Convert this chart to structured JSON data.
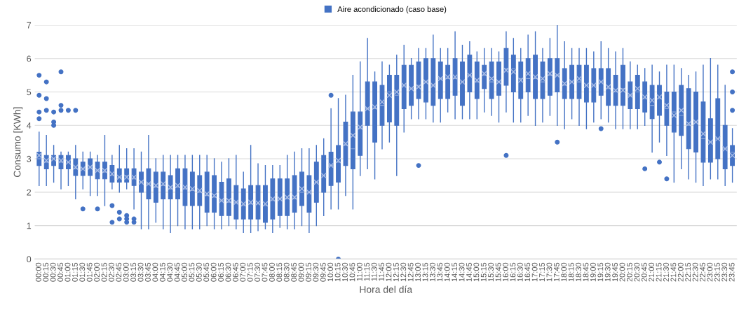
{
  "chart_data": {
    "type": "box",
    "xlabel": "Hora del día",
    "ylabel": "Consumo [KWh]",
    "categories": [
      "00:00",
      "00:15",
      "00:30",
      "00:45",
      "01:00",
      "01:15",
      "01:30",
      "01:45",
      "02:00",
      "02:15",
      "02:30",
      "02:45",
      "03:00",
      "03:15",
      "03:30",
      "03:45",
      "04:00",
      "04:15",
      "04:30",
      "04:45",
      "05:00",
      "05:15",
      "05:30",
      "05:45",
      "06:00",
      "06:15",
      "06:30",
      "06:45",
      "07:00",
      "07:15",
      "07:30",
      "07:45",
      "08:00",
      "08:15",
      "08:30",
      "08:45",
      "09:00",
      "09:15",
      "09:30",
      "09:45",
      "10:00",
      "10:15",
      "10:30",
      "10:45",
      "11:00",
      "11:15",
      "11:30",
      "11:45",
      "12:00",
      "12:15",
      "12:30",
      "12:45",
      "13:00",
      "13:15",
      "13:30",
      "13:45",
      "14:00",
      "14:15",
      "14:30",
      "14:45",
      "15:00",
      "15:15",
      "15:30",
      "15:45",
      "16:00",
      "16:15",
      "16:30",
      "16:45",
      "17:00",
      "17:15",
      "17:30",
      "17:45",
      "18:00",
      "18:15",
      "18:30",
      "18:45",
      "19:00",
      "19:15",
      "19:30",
      "19:45",
      "20:00",
      "20:15",
      "20:30",
      "20:45",
      "21:00",
      "21:15",
      "21:30",
      "21:45",
      "22:00",
      "22:15",
      "22:30",
      "22:45",
      "23:00",
      "23:15",
      "23:30",
      "23:45"
    ],
    "series": [
      {
        "name": "Aire acondicionado (caso base)",
        "color": "#4472c4",
        "boxes": [
          {
            "low": 2.2,
            "q1": 2.8,
            "median": 3.0,
            "q3": 3.2,
            "high": 3.8,
            "mean": 3.1,
            "outliers": [
              4.2,
              4.4,
              4.9,
              5.5
            ]
          },
          {
            "low": 2.2,
            "q1": 2.7,
            "median": 2.9,
            "q3": 3.1,
            "high": 3.7,
            "mean": 2.95,
            "outliers": [
              4.45,
              4.8,
              5.3
            ]
          },
          {
            "low": 2.3,
            "q1": 2.8,
            "median": 3.0,
            "q3": 3.1,
            "high": 3.4,
            "mean": 3.0,
            "outliers": [
              4.0,
              4.1,
              4.4
            ]
          },
          {
            "low": 2.1,
            "q1": 2.7,
            "median": 2.9,
            "q3": 3.1,
            "high": 3.2,
            "mean": 2.95,
            "outliers": [
              4.45,
              4.6,
              5.6
            ]
          },
          {
            "low": 2.2,
            "q1": 2.7,
            "median": 2.9,
            "q3": 3.1,
            "high": 3.2,
            "mean": 2.9,
            "outliers": [
              4.45
            ]
          },
          {
            "low": 1.8,
            "q1": 2.5,
            "median": 2.7,
            "q3": 3.0,
            "high": 3.4,
            "mean": 2.75,
            "outliers": [
              4.45
            ]
          },
          {
            "low": 2.1,
            "q1": 2.5,
            "median": 2.7,
            "q3": 2.9,
            "high": 3.2,
            "mean": 2.7,
            "outliers": [
              1.5
            ]
          },
          {
            "low": 1.9,
            "q1": 2.5,
            "median": 2.75,
            "q3": 3.0,
            "high": 3.2,
            "mean": 2.75
          },
          {
            "low": 1.9,
            "q1": 2.4,
            "median": 2.65,
            "q3": 2.9,
            "high": 3.1,
            "mean": 2.65,
            "outliers": [
              1.5
            ]
          },
          {
            "low": 1.6,
            "q1": 2.4,
            "median": 2.6,
            "q3": 2.9,
            "high": 3.7,
            "mean": 2.65
          },
          {
            "low": 2.1,
            "q1": 2.3,
            "median": 2.5,
            "q3": 2.8,
            "high": 3.1,
            "mean": 2.55,
            "outliers": [
              1.1,
              1.6
            ]
          },
          {
            "low": 2.0,
            "q1": 2.3,
            "median": 2.45,
            "q3": 2.7,
            "high": 3.4,
            "mean": 2.45,
            "outliers": [
              1.2,
              1.4
            ]
          },
          {
            "low": 2.1,
            "q1": 2.3,
            "median": 2.5,
            "q3": 2.7,
            "high": 3.3,
            "mean": 2.45,
            "outliers": [
              1.1,
              1.2,
              1.3
            ]
          },
          {
            "low": 1.5,
            "q1": 2.2,
            "median": 2.4,
            "q3": 2.7,
            "high": 3.3,
            "mean": 2.45,
            "outliers": [
              1.1,
              1.2
            ]
          },
          {
            "low": 0.9,
            "q1": 2.0,
            "median": 2.3,
            "q3": 2.6,
            "high": 3.2,
            "mean": 2.3
          },
          {
            "low": 0.9,
            "q1": 1.8,
            "median": 2.25,
            "q3": 2.7,
            "high": 3.7,
            "mean": 2.25
          },
          {
            "low": 1.1,
            "q1": 1.7,
            "median": 2.15,
            "q3": 2.6,
            "high": 3.0,
            "mean": 2.2
          },
          {
            "low": 0.9,
            "q1": 1.8,
            "median": 2.2,
            "q3": 2.6,
            "high": 3.1,
            "mean": 2.25
          },
          {
            "low": 0.8,
            "q1": 1.8,
            "median": 2.1,
            "q3": 2.5,
            "high": 3.1,
            "mean": 2.15
          },
          {
            "low": 1.0,
            "q1": 1.8,
            "median": 2.15,
            "q3": 2.7,
            "high": 3.1,
            "mean": 2.2
          },
          {
            "low": 0.9,
            "q1": 1.6,
            "median": 2.1,
            "q3": 2.7,
            "high": 3.1,
            "mean": 2.15
          },
          {
            "low": 0.9,
            "q1": 1.6,
            "median": 2.05,
            "q3": 2.6,
            "high": 3.1,
            "mean": 2.1
          },
          {
            "low": 0.9,
            "q1": 1.6,
            "median": 2.0,
            "q3": 2.5,
            "high": 3.1,
            "mean": 2.05
          },
          {
            "low": 1.0,
            "q1": 1.4,
            "median": 1.9,
            "q3": 2.6,
            "high": 3.1,
            "mean": 1.95
          },
          {
            "low": 0.9,
            "q1": 1.4,
            "median": 1.85,
            "q3": 2.5,
            "high": 3.0,
            "mean": 1.9
          },
          {
            "low": 0.9,
            "q1": 1.3,
            "median": 1.75,
            "q3": 2.3,
            "high": 2.9,
            "mean": 1.75
          },
          {
            "low": 1.0,
            "q1": 1.3,
            "median": 1.7,
            "q3": 2.4,
            "high": 3.0,
            "mean": 1.75
          },
          {
            "low": 0.9,
            "q1": 1.2,
            "median": 1.7,
            "q3": 2.2,
            "high": 3.1,
            "mean": 1.7
          },
          {
            "low": 0.8,
            "q1": 1.2,
            "median": 1.6,
            "q3": 2.1,
            "high": 2.6,
            "mean": 1.65
          },
          {
            "low": 0.8,
            "q1": 1.2,
            "median": 1.65,
            "q3": 2.2,
            "high": 3.4,
            "mean": 1.7
          },
          {
            "low": 0.85,
            "q1": 1.2,
            "median": 1.65,
            "q3": 2.2,
            "high": 2.85,
            "mean": 1.68
          },
          {
            "low": 0.9,
            "q1": 1.1,
            "median": 1.6,
            "q3": 2.2,
            "high": 2.8,
            "mean": 1.65
          },
          {
            "low": 0.8,
            "q1": 1.2,
            "median": 1.75,
            "q3": 2.4,
            "high": 2.8,
            "mean": 1.8
          },
          {
            "low": 0.95,
            "q1": 1.3,
            "median": 1.8,
            "q3": 2.4,
            "high": 2.8,
            "mean": 1.8
          },
          {
            "low": 0.9,
            "q1": 1.3,
            "median": 1.8,
            "q3": 2.4,
            "high": 3.1,
            "mean": 1.85
          },
          {
            "low": 0.9,
            "q1": 1.4,
            "median": 1.8,
            "q3": 2.5,
            "high": 3.2,
            "mean": 1.85
          },
          {
            "low": 1.0,
            "q1": 1.6,
            "median": 2.0,
            "q3": 2.6,
            "high": 3.3,
            "mean": 2.1
          },
          {
            "low": 0.8,
            "q1": 1.4,
            "median": 2.0,
            "q3": 2.5,
            "high": 3.3,
            "mean": 2.0
          },
          {
            "low": 1.0,
            "q1": 1.7,
            "median": 2.3,
            "q3": 2.9,
            "high": 3.4,
            "mean": 2.3
          },
          {
            "low": 1.3,
            "q1": 2.0,
            "median": 2.5,
            "q3": 3.1,
            "high": 3.6,
            "mean": 2.5
          },
          {
            "low": 1.5,
            "q1": 2.2,
            "median": 2.8,
            "q3": 3.2,
            "high": 4.5,
            "mean": 2.8,
            "outliers": [
              4.9
            ]
          },
          {
            "low": 1.5,
            "q1": 2.3,
            "median": 2.9,
            "q3": 3.4,
            "high": 4.8,
            "mean": 2.95,
            "outliers": [
              0.0
            ]
          },
          {
            "low": 1.9,
            "q1": 2.8,
            "median": 3.4,
            "q3": 4.1,
            "high": 4.9,
            "mean": 3.45
          },
          {
            "low": 1.5,
            "q1": 2.7,
            "median": 3.3,
            "q3": 4.4,
            "high": 5.5,
            "mean": 3.7
          },
          {
            "low": 2.5,
            "q1": 3.1,
            "median": 3.9,
            "q3": 4.4,
            "high": 5.9,
            "mean": 3.95
          },
          {
            "low": 2.7,
            "q1": 4.0,
            "median": 4.5,
            "q3": 5.3,
            "high": 6.6,
            "mean": 4.5
          },
          {
            "low": 2.4,
            "q1": 3.5,
            "median": 4.5,
            "q3": 5.3,
            "high": 5.6,
            "mean": 4.55
          },
          {
            "low": 3.3,
            "q1": 4.0,
            "median": 4.6,
            "q3": 5.2,
            "high": 5.9,
            "mean": 4.7
          },
          {
            "low": 3.5,
            "q1": 4.1,
            "median": 5.0,
            "q3": 5.5,
            "high": 5.8,
            "mean": 4.9
          },
          {
            "low": 2.5,
            "q1": 4.0,
            "median": 4.9,
            "q3": 5.5,
            "high": 6.1,
            "mean": 5.0
          },
          {
            "low": 3.8,
            "q1": 4.5,
            "median": 5.2,
            "q3": 5.8,
            "high": 6.4,
            "mean": 5.2
          },
          {
            "low": 4.2,
            "q1": 4.6,
            "median": 5.1,
            "q3": 5.8,
            "high": 6.0,
            "mean": 5.1
          },
          {
            "low": 4.2,
            "q1": 4.8,
            "median": 5.2,
            "q3": 5.9,
            "high": 6.3,
            "mean": 5.15,
            "outliers": [
              2.8
            ]
          },
          {
            "low": 4.2,
            "q1": 4.7,
            "median": 5.3,
            "q3": 6.0,
            "high": 6.3,
            "mean": 5.3
          },
          {
            "low": 4.1,
            "q1": 4.6,
            "median": 5.2,
            "q3": 6.0,
            "high": 6.7,
            "mean": 5.2
          },
          {
            "low": 4.1,
            "q1": 4.8,
            "median": 5.4,
            "q3": 5.9,
            "high": 6.3,
            "mean": 5.4
          },
          {
            "low": 4.4,
            "q1": 4.8,
            "median": 5.4,
            "q3": 5.8,
            "high": 6.3,
            "mean": 5.45
          },
          {
            "low": 4.2,
            "q1": 4.9,
            "median": 5.4,
            "q3": 6.0,
            "high": 6.8,
            "mean": 5.45
          },
          {
            "low": 4.2,
            "q1": 4.6,
            "median": 5.3,
            "q3": 5.9,
            "high": 6.4,
            "mean": 5.3
          },
          {
            "low": 4.2,
            "q1": 5.0,
            "median": 5.5,
            "q3": 6.1,
            "high": 6.5,
            "mean": 5.5
          },
          {
            "low": 4.2,
            "q1": 4.8,
            "median": 5.3,
            "q3": 5.9,
            "high": 6.2,
            "mean": 5.35
          },
          {
            "low": 4.4,
            "q1": 5.1,
            "median": 5.5,
            "q3": 5.8,
            "high": 6.3,
            "mean": 5.55
          },
          {
            "low": 4.3,
            "q1": 4.8,
            "median": 5.3,
            "q3": 5.9,
            "high": 6.3,
            "mean": 5.4
          },
          {
            "low": 4.1,
            "q1": 4.9,
            "median": 5.3,
            "q3": 5.9,
            "high": 6.2,
            "mean": 5.3
          },
          {
            "low": 4.4,
            "q1": 5.2,
            "median": 5.7,
            "q3": 6.3,
            "high": 6.8,
            "mean": 5.65,
            "outliers": [
              3.1
            ]
          },
          {
            "low": 4.1,
            "q1": 5.0,
            "median": 5.7,
            "q3": 6.1,
            "high": 6.6,
            "mean": 5.6
          },
          {
            "low": 4.1,
            "q1": 4.8,
            "median": 5.4,
            "q3": 5.9,
            "high": 6.3,
            "mean": 5.35
          },
          {
            "low": 4.3,
            "q1": 5.0,
            "median": 5.4,
            "q3": 6.0,
            "high": 6.7,
            "mean": 5.55
          },
          {
            "low": 4.0,
            "q1": 4.8,
            "median": 5.4,
            "q3": 6.1,
            "high": 6.8,
            "mean": 5.45
          },
          {
            "low": 4.1,
            "q1": 4.8,
            "median": 5.3,
            "q3": 5.9,
            "high": 6.3,
            "mean": 5.4
          },
          {
            "low": 4.3,
            "q1": 4.9,
            "median": 5.5,
            "q3": 6.0,
            "high": 6.6,
            "mean": 5.55
          },
          {
            "low": 4.0,
            "q1": 5.0,
            "median": 5.5,
            "q3": 6.0,
            "high": 7.0,
            "mean": 5.5,
            "outliers": [
              3.5
            ]
          },
          {
            "low": 3.9,
            "q1": 4.8,
            "median": 5.2,
            "q3": 5.7,
            "high": 6.5,
            "mean": 5.25
          },
          {
            "low": 4.2,
            "q1": 4.8,
            "median": 5.3,
            "q3": 5.8,
            "high": 6.3,
            "mean": 5.3
          },
          {
            "low": 4.0,
            "q1": 4.8,
            "median": 5.3,
            "q3": 5.8,
            "high": 6.3,
            "mean": 5.4
          },
          {
            "low": 3.9,
            "q1": 4.7,
            "median": 5.2,
            "q3": 5.8,
            "high": 6.3,
            "mean": 5.2
          },
          {
            "low": 4.1,
            "q1": 4.7,
            "median": 5.2,
            "q3": 5.7,
            "high": 6.2,
            "mean": 5.2
          },
          {
            "low": 4.2,
            "q1": 4.9,
            "median": 5.3,
            "q3": 5.7,
            "high": 6.5,
            "mean": 5.3,
            "outliers": [
              3.9
            ]
          },
          {
            "low": 4.1,
            "q1": 4.6,
            "median": 5.1,
            "q3": 5.7,
            "high": 6.3,
            "mean": 5.15
          },
          {
            "low": 3.9,
            "q1": 4.6,
            "median": 5.0,
            "q3": 5.5,
            "high": 6.2,
            "mean": 5.05
          },
          {
            "low": 3.9,
            "q1": 4.6,
            "median": 5.1,
            "q3": 5.8,
            "high": 6.3,
            "mean": 5.05
          },
          {
            "low": 3.9,
            "q1": 4.5,
            "median": 4.9,
            "q3": 5.3,
            "high": 5.9,
            "mean": 4.9
          },
          {
            "low": 3.9,
            "q1": 4.5,
            "median": 5.0,
            "q3": 5.5,
            "high": 5.8,
            "mean": 5.1
          },
          {
            "low": 4.0,
            "q1": 4.4,
            "median": 4.8,
            "q3": 5.3,
            "high": 5.7,
            "mean": 4.85,
            "outliers": [
              2.7
            ]
          },
          {
            "low": 3.2,
            "q1": 4.2,
            "median": 4.6,
            "q3": 5.2,
            "high": 5.8,
            "mean": 4.75
          },
          {
            "low": 3.5,
            "q1": 4.3,
            "median": 4.8,
            "q3": 5.2,
            "high": 5.6,
            "mean": 4.85,
            "outliers": [
              2.9
            ]
          },
          {
            "low": 3.1,
            "q1": 4.0,
            "median": 4.5,
            "q3": 5.0,
            "high": 5.8,
            "mean": 4.6,
            "outliers": [
              2.4
            ]
          },
          {
            "low": 2.3,
            "q1": 3.8,
            "median": 4.4,
            "q3": 5.0,
            "high": 5.8,
            "mean": 4.3
          },
          {
            "low": 2.7,
            "q1": 3.7,
            "median": 4.3,
            "q3": 5.2,
            "high": 5.7,
            "mean": 4.45
          },
          {
            "low": 2.4,
            "q1": 3.3,
            "median": 4.0,
            "q3": 5.1,
            "high": 5.5,
            "mean": 4.05
          },
          {
            "low": 2.3,
            "q1": 3.2,
            "median": 4.1,
            "q3": 5.0,
            "high": 5.6,
            "mean": 4.1
          },
          {
            "low": 2.2,
            "q1": 2.9,
            "median": 3.6,
            "q3": 4.7,
            "high": 5.8,
            "mean": 3.75
          },
          {
            "low": 2.4,
            "q1": 2.9,
            "median": 3.5,
            "q3": 4.2,
            "high": 6.0,
            "mean": 3.5
          },
          {
            "low": 2.4,
            "q1": 3.0,
            "median": 3.6,
            "q3": 4.8,
            "high": 5.8,
            "mean": 3.6
          },
          {
            "low": 2.2,
            "q1": 2.7,
            "median": 3.3,
            "q3": 4.0,
            "high": 5.2,
            "mean": 3.3
          },
          {
            "low": 2.3,
            "q1": 2.8,
            "median": 3.2,
            "q3": 3.4,
            "high": 3.9,
            "mean": 3.1,
            "outliers": [
              4.45,
              5.0,
              5.6
            ]
          }
        ]
      }
    ],
    "ylim": [
      0,
      7
    ],
    "yticks": [
      0,
      1,
      2,
      3,
      4,
      5,
      6,
      7
    ],
    "grid": "y",
    "legend": "top"
  }
}
